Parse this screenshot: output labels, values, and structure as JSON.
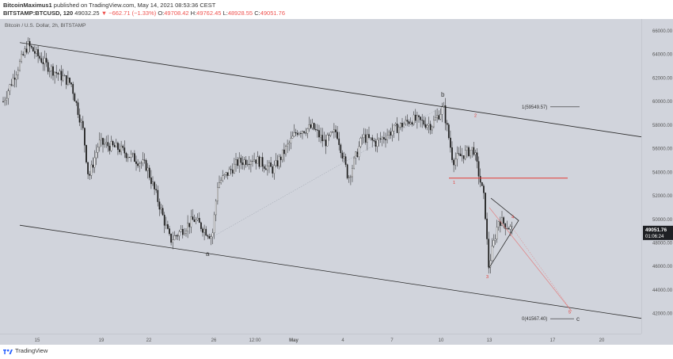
{
  "header": {
    "author": "BitcoinMaximus1",
    "published_text": "published on TradingView.com, May 14, 2021 08:53:36 CEST",
    "symbol": "BITSTAMP:BTCUSD, 120",
    "last": "49032.25",
    "change": "▼ −662.71 (−1.33%)",
    "o_label": "O:",
    "o": "49708.42",
    "h_label": "H:",
    "h": "49762.45",
    "l_label": "L:",
    "l": "48928.55",
    "c_label": "C:",
    "c": "49051.76"
  },
  "footer": {
    "brand": "TradingView",
    "logo_icon": "tradingview-logo-icon"
  },
  "colors": {
    "background": "#d1d4dc",
    "candles": "#1a1a1a",
    "trendline": "#2a2a2a",
    "support_line": "#e53935",
    "wave_labels": "#e53935",
    "projection": "#e57373"
  },
  "chart_data": {
    "type": "candlestick",
    "title": "Bitcoin / U.S. Dollar, 2h, BITSTAMP",
    "currency": "USD",
    "ylim": [
      40300,
      67000
    ],
    "y_ticks": [
      42000,
      44000,
      46000,
      48000,
      50000,
      52000,
      54000,
      56000,
      58000,
      60000,
      62000,
      64000,
      66000
    ],
    "x_ticks": [
      "15",
      "19",
      "22",
      "26",
      "12:00",
      "May",
      "4",
      "7",
      "10",
      "13",
      "17",
      "20"
    ],
    "price_path": [
      {
        "t": "Apr 13",
        "price": 60000
      },
      {
        "t": "Apr 14",
        "price": 64800
      },
      {
        "t": "Apr 15",
        "price": 63000
      },
      {
        "t": "Apr 16",
        "price": 61500
      },
      {
        "t": "Apr 17",
        "price": 57500
      },
      {
        "t": "Apr 18",
        "price": 53500
      },
      {
        "t": "Apr 19",
        "price": 56500
      },
      {
        "t": "Apr 20",
        "price": 56000
      },
      {
        "t": "Apr 21",
        "price": 54500
      },
      {
        "t": "Apr 22",
        "price": 51500
      },
      {
        "t": "Apr 23",
        "price": 48200
      },
      {
        "t": "Apr 24",
        "price": 50000
      },
      {
        "t": "Apr 25",
        "price": 48500
      },
      {
        "t": "Apr 26",
        "price": 53000
      },
      {
        "t": "Apr 27",
        "price": 54800
      },
      {
        "t": "Apr 28",
        "price": 55200
      },
      {
        "t": "Apr 29",
        "price": 54200
      },
      {
        "t": "Apr 30",
        "price": 57500
      },
      {
        "t": "May 1",
        "price": 57800
      },
      {
        "t": "May 2",
        "price": 56500
      },
      {
        "t": "May 3",
        "price": 57500
      },
      {
        "t": "May 4",
        "price": 53500
      },
      {
        "t": "May 5",
        "price": 57000
      },
      {
        "t": "May 6",
        "price": 56500
      },
      {
        "t": "May 7",
        "price": 57500
      },
      {
        "t": "May 8",
        "price": 58500
      },
      {
        "t": "May 9",
        "price": 58000
      },
      {
        "t": "May 10",
        "price": 59500
      },
      {
        "t": "May 10 12:00",
        "price": 55000
      },
      {
        "t": "May 11",
        "price": 55500
      },
      {
        "t": "May 12",
        "price": 56000
      },
      {
        "t": "May 12 12:00",
        "price": 51500
      },
      {
        "t": "May 13",
        "price": 46000
      },
      {
        "t": "May 13 12:00",
        "price": 50000
      },
      {
        "t": "May 14",
        "price": 49051.76
      }
    ],
    "current_price": {
      "symbol": "BTCUSD",
      "value": "49051.76",
      "countdown": "01:06:24"
    },
    "annotations": {
      "wave_a": "a",
      "wave_b": "b",
      "wave_c": "c",
      "waves": [
        "1",
        "2",
        "3",
        "4",
        "5"
      ],
      "fib_1": "1(59549.57)",
      "fib_0": "0(41567.40)",
      "support_level": 53500
    },
    "grid": false,
    "legend": "top-left"
  }
}
